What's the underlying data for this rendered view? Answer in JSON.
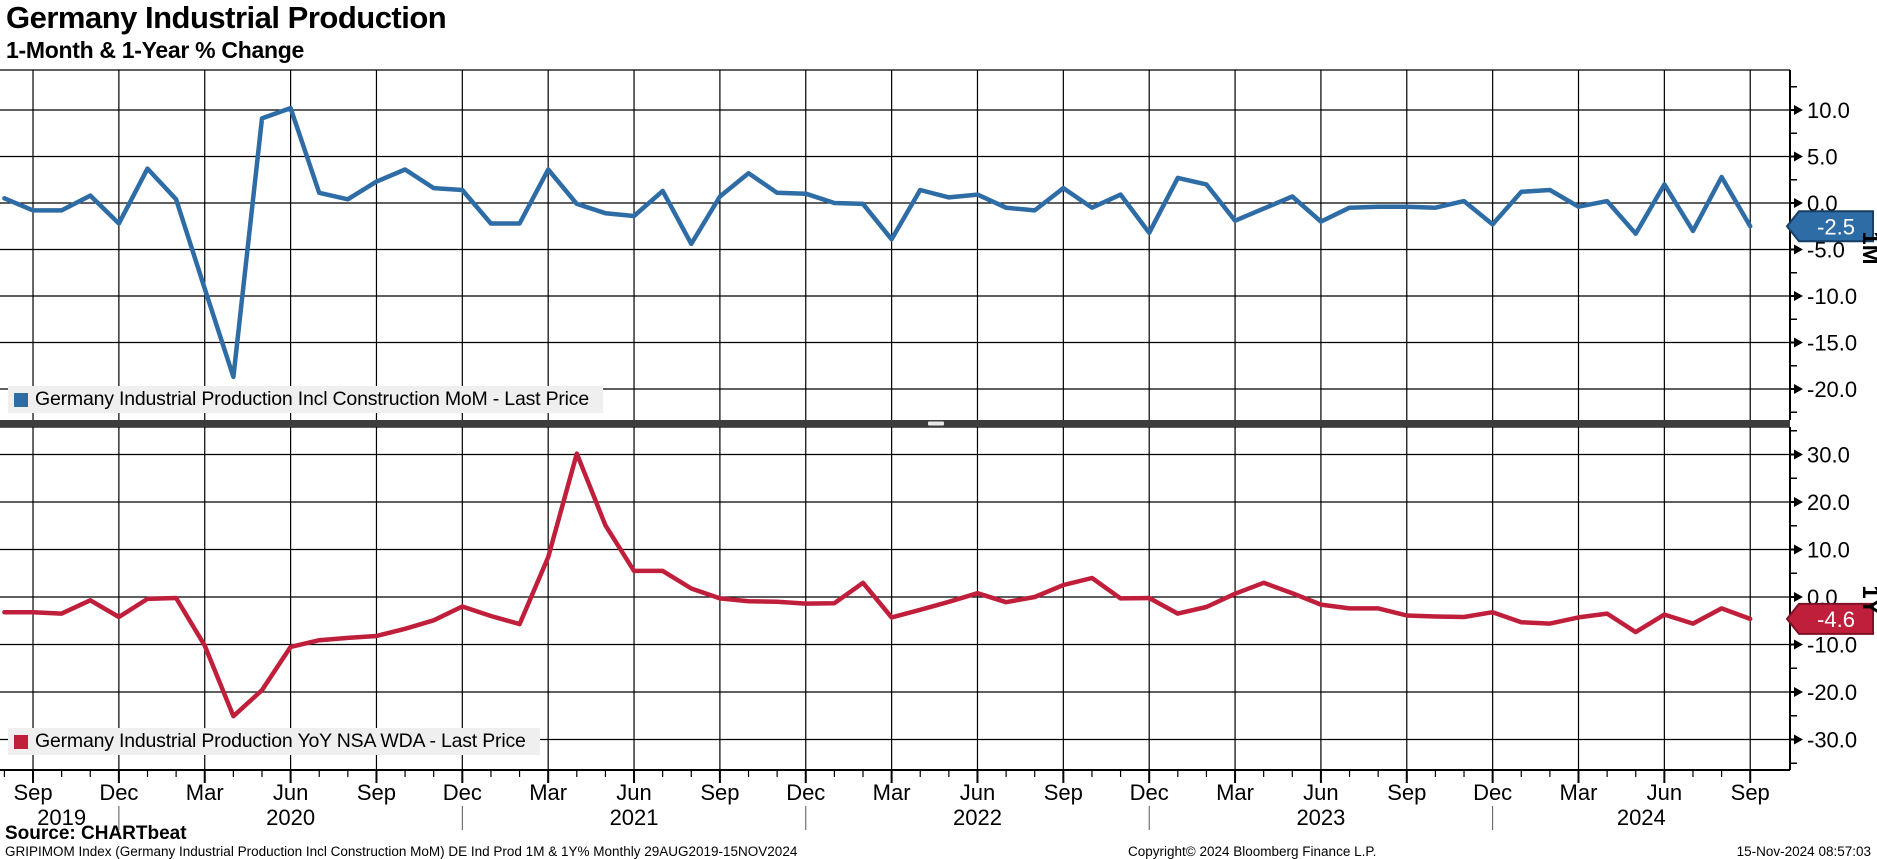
{
  "header": {
    "title": "Germany Industrial Production",
    "subtitle": "1-Month & 1-Year % Change"
  },
  "source_line": "Source: CHARTbeat",
  "footer": {
    "left": "GRIPIMOM Index (Germany Industrial Production Incl Construction MoM) DE Ind Prod 1M & 1Y%  Monthly 29AUG2019-15NOV2024",
    "center": "Copyright© 2024 Bloomberg Finance L.P.",
    "right": "15-Nov-2024 08:57:03"
  },
  "colors": {
    "grid": "#000000",
    "axis": "#000000",
    "legend_bg": "#efefef",
    "divider": "#3d3d3d",
    "divider_handle": "#e6e6e6",
    "mom": "#2e6ca6",
    "mom_badge_border": "#173f66",
    "yoy": "#c01f3c",
    "yoy_badge_border": "#7d1227",
    "badge_text": "#ffffff"
  },
  "chart_data": {
    "type": "line",
    "title": "Germany Industrial Production",
    "subtitle": "1-Month & 1-Year % Change",
    "frequency": "Monthly",
    "x_months": [
      "Aug 2019",
      "Sep 2019",
      "Oct 2019",
      "Nov 2019",
      "Dec 2019",
      "Jan 2020",
      "Feb 2020",
      "Mar 2020",
      "Apr 2020",
      "May 2020",
      "Jun 2020",
      "Jul 2020",
      "Aug 2020",
      "Sep 2020",
      "Oct 2020",
      "Nov 2020",
      "Dec 2020",
      "Jan 2021",
      "Feb 2021",
      "Mar 2021",
      "Apr 2021",
      "May 2021",
      "Jun 2021",
      "Jul 2021",
      "Aug 2021",
      "Sep 2021",
      "Oct 2021",
      "Nov 2021",
      "Dec 2021",
      "Jan 2022",
      "Feb 2022",
      "Mar 2022",
      "Apr 2022",
      "May 2022",
      "Jun 2022",
      "Jul 2022",
      "Aug 2022",
      "Sep 2022",
      "Oct 2022",
      "Nov 2022",
      "Dec 2022",
      "Jan 2023",
      "Feb 2023",
      "Mar 2023",
      "Apr 2023",
      "May 2023",
      "Jun 2023",
      "Jul 2023",
      "Aug 2023",
      "Sep 2023",
      "Oct 2023",
      "Nov 2023",
      "Dec 2023",
      "Jan 2024",
      "Feb 2024",
      "Mar 2024",
      "Apr 2024",
      "May 2024",
      "Jun 2024",
      "Jul 2024",
      "Aug 2024",
      "Sep 2024"
    ],
    "x_axis": {
      "quarter_labels": [
        "Sep",
        "Dec",
        "Mar",
        "Jun",
        "Sep",
        "Dec",
        "Mar",
        "Jun",
        "Sep",
        "Dec",
        "Mar",
        "Jun",
        "Sep",
        "Dec",
        "Mar",
        "Jun",
        "Sep",
        "Dec",
        "Mar",
        "Jun",
        "Sep"
      ],
      "year_labels": [
        "2019",
        "2020",
        "2021",
        "2022",
        "2023",
        "2024"
      ]
    },
    "panels": [
      {
        "unit": "1M",
        "legend": "Germany Industrial Production Incl Construction MoM - Last Price",
        "color": "#2e6ca6",
        "badge_border": "#173f66",
        "last_value_label": "-2.5",
        "ytick_labels": [
          "10.0",
          "5.0",
          "0.0",
          "-5.0",
          "-10.0",
          "-15.0",
          "-20.0"
        ],
        "ylim": [
          -23.3,
          14.3
        ],
        "values": [
          0.5,
          -0.8,
          -0.8,
          0.8,
          -2.2,
          3.7,
          0.4,
          -9.2,
          -18.7,
          9.1,
          10.2,
          1.1,
          0.4,
          2.3,
          3.6,
          1.6,
          1.4,
          -2.2,
          -2.2,
          3.6,
          -0.1,
          -1.1,
          -1.4,
          1.3,
          -4.4,
          0.7,
          3.2,
          1.1,
          1.0,
          0.0,
          -0.1,
          -3.9,
          1.4,
          0.6,
          0.9,
          -0.5,
          -0.8,
          1.6,
          -0.5,
          0.9,
          -3.2,
          2.7,
          2.0,
          -1.9,
          -0.6,
          0.7,
          -2.0,
          -0.5,
          -0.4,
          -0.4,
          -0.5,
          0.2,
          -2.3,
          1.2,
          1.4,
          -0.4,
          0.2,
          -3.3,
          2.0,
          -3.0,
          2.8,
          -2.5
        ]
      },
      {
        "unit": "1Y",
        "legend": "Germany Industrial Production YoY NSA WDA - Last Price",
        "color": "#c01f3c",
        "badge_border": "#7d1227",
        "last_value_label": "-4.6",
        "ytick_labels": [
          "30.0",
          "20.0",
          "10.0",
          "0.0",
          "-10.0",
          "-20.0",
          "-30.0"
        ],
        "ylim": [
          -36.4,
          35.8
        ],
        "values": [
          -3.2,
          -3.2,
          -3.5,
          -0.7,
          -4.2,
          -0.4,
          -0.2,
          -10.2,
          -25.1,
          -19.6,
          -10.5,
          -9.1,
          -8.6,
          -8.2,
          -6.7,
          -4.9,
          -2.0,
          -4.0,
          -5.7,
          8.4,
          30.2,
          15.1,
          5.5,
          5.5,
          1.8,
          -0.3,
          -0.9,
          -1.0,
          -1.4,
          -1.3,
          3.0,
          -4.3,
          -2.7,
          -1.0,
          0.8,
          -1.1,
          0.0,
          2.5,
          4.0,
          -0.3,
          -0.2,
          -3.5,
          -2.1,
          0.7,
          3.0,
          0.8,
          -1.6,
          -2.4,
          -2.4,
          -3.9,
          -4.1,
          -4.2,
          -3.2,
          -5.3,
          -5.6,
          -4.3,
          -3.5,
          -7.4,
          -3.7,
          -5.6,
          -2.4,
          -4.6
        ]
      }
    ]
  }
}
